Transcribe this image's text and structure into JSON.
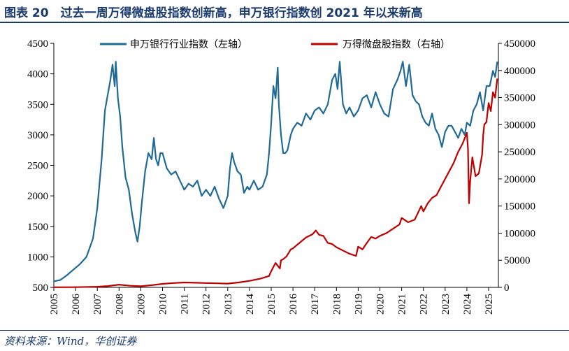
{
  "figure": {
    "title": "图表 20　过去一周万得微盘股指数创新高，申万银行指数创 2021 年以来新高",
    "source": "资料来源：Wind，华创证券"
  },
  "colors": {
    "bank": "#1f6a96",
    "microcap": "#c00000",
    "title": "#1b3b6f"
  },
  "chart_data": {
    "type": "line",
    "title": "图表 20　过去一周万得微盘股指数创新高，申万银行指数创 2021 年以来新高",
    "xlabel": "",
    "ylabel": "",
    "x_ticks": [
      "2005",
      "2006",
      "2007",
      "2008",
      "2009",
      "2010",
      "2011",
      "2012",
      "2013",
      "2014",
      "2015",
      "2016",
      "2017",
      "2018",
      "2019",
      "2020",
      "2021",
      "2022",
      "2023",
      "2024",
      "2025"
    ],
    "xlim": [
      2005,
      2025.45
    ],
    "ylim_left": [
      500,
      4500
    ],
    "ylim_right": [
      0,
      450000
    ],
    "y_ticks_left": [
      "4500",
      "4000",
      "3500",
      "3000",
      "2500",
      "2000",
      "1500",
      "1000",
      "500"
    ],
    "y_ticks_right": [
      "450000",
      "400000",
      "350000",
      "300000",
      "250000",
      "200000",
      "150000",
      "100000",
      "50000",
      "0"
    ],
    "grid": false,
    "legend_position": "top-center",
    "series": [
      {
        "name": "申万银行行业指数（左轴）",
        "axis": "left",
        "x": [
          2005.0,
          2005.3,
          2005.6,
          2005.9,
          2006.2,
          2006.5,
          2006.8,
          2007.0,
          2007.2,
          2007.35,
          2007.5,
          2007.6,
          2007.7,
          2007.8,
          2007.85,
          2007.95,
          2008.05,
          2008.15,
          2008.3,
          2008.45,
          2008.6,
          2008.75,
          2008.85,
          2008.95,
          2009.05,
          2009.2,
          2009.35,
          2009.5,
          2009.6,
          2009.7,
          2009.8,
          2009.9,
          2010.0,
          2010.2,
          2010.4,
          2010.6,
          2010.8,
          2011.0,
          2011.2,
          2011.4,
          2011.6,
          2011.8,
          2012.0,
          2012.2,
          2012.4,
          2012.6,
          2012.8,
          2012.9,
          2013.0,
          2013.1,
          2013.2,
          2013.3,
          2013.45,
          2013.6,
          2013.75,
          2013.9,
          2014.0,
          2014.2,
          2014.4,
          2014.6,
          2014.8,
          2014.9,
          2015.0,
          2015.1,
          2015.2,
          2015.3,
          2015.35,
          2015.45,
          2015.55,
          2015.65,
          2015.75,
          2015.9,
          2016.0,
          2016.2,
          2016.4,
          2016.6,
          2016.8,
          2017.0,
          2017.2,
          2017.4,
          2017.6,
          2017.8,
          2017.95,
          2018.05,
          2018.15,
          2018.3,
          2018.45,
          2018.6,
          2018.8,
          2019.0,
          2019.2,
          2019.4,
          2019.6,
          2019.8,
          2020.0,
          2020.2,
          2020.4,
          2020.6,
          2020.8,
          2020.95,
          2021.05,
          2021.2,
          2021.35,
          2021.5,
          2021.65,
          2021.8,
          2021.95,
          2022.1,
          2022.25,
          2022.4,
          2022.55,
          2022.7,
          2022.85,
          2023.0,
          2023.15,
          2023.3,
          2023.45,
          2023.6,
          2023.75,
          2023.9,
          2024.0,
          2024.15,
          2024.3,
          2024.45,
          2024.6,
          2024.75,
          2024.9,
          2025.05,
          2025.2,
          2025.3,
          2025.4
        ],
        "values": [
          600,
          620,
          700,
          790,
          880,
          1000,
          1300,
          1800,
          2600,
          3400,
          3700,
          3900,
          4150,
          3800,
          4200,
          3600,
          3300,
          2800,
          2300,
          2100,
          1700,
          1400,
          1250,
          1500,
          1900,
          2400,
          2700,
          2600,
          2950,
          2600,
          2500,
          2700,
          2700,
          2450,
          2350,
          2400,
          2250,
          2100,
          2200,
          2150,
          2250,
          2000,
          2100,
          2000,
          2150,
          1950,
          1800,
          1900,
          2000,
          2450,
          2700,
          2550,
          2400,
          2350,
          2050,
          2150,
          2100,
          2250,
          2100,
          2150,
          2350,
          2700,
          3200,
          3800,
          3600,
          4100,
          3500,
          3000,
          2700,
          2700,
          2750,
          3000,
          3100,
          3200,
          3150,
          3350,
          3250,
          3400,
          3450,
          3350,
          3500,
          3900,
          4000,
          3750,
          4200,
          3500,
          3350,
          3450,
          3300,
          3400,
          3600,
          3650,
          3450,
          3700,
          3500,
          3350,
          3300,
          3750,
          3900,
          4050,
          4200,
          3800,
          4150,
          3650,
          3550,
          3500,
          3300,
          3200,
          3150,
          3350,
          3100,
          3000,
          2800,
          3050,
          3150,
          3150,
          3050,
          2950,
          3100,
          3000,
          3200,
          3150,
          3400,
          3500,
          3700,
          3400,
          3800,
          3800,
          4050,
          3950,
          4200
        ],
        "color": "#1f6a96"
      },
      {
        "name": "万得微盘股指数（右轴）",
        "axis": "right",
        "x": [
          2005.0,
          2006.0,
          2007.0,
          2007.5,
          2008.0,
          2008.5,
          2009.0,
          2009.5,
          2010.0,
          2010.5,
          2011.0,
          2011.5,
          2012.0,
          2012.5,
          2013.0,
          2013.5,
          2014.0,
          2014.5,
          2014.9,
          2015.0,
          2015.2,
          2015.4,
          2015.45,
          2015.55,
          2015.7,
          2015.9,
          2016.0,
          2016.3,
          2016.6,
          2016.9,
          2017.05,
          2017.2,
          2017.4,
          2017.6,
          2017.8,
          2018.0,
          2018.3,
          2018.6,
          2018.9,
          2019.0,
          2019.2,
          2019.4,
          2019.6,
          2019.8,
          2020.0,
          2020.3,
          2020.6,
          2020.9,
          2021.0,
          2021.3,
          2021.6,
          2021.9,
          2022.0,
          2022.2,
          2022.4,
          2022.6,
          2022.8,
          2023.0,
          2023.2,
          2023.4,
          2023.6,
          2023.8,
          2024.0,
          2024.05,
          2024.1,
          2024.15,
          2024.25,
          2024.4,
          2024.55,
          2024.7,
          2024.75,
          2024.8,
          2024.9,
          2025.0,
          2025.1,
          2025.2,
          2025.3,
          2025.4
        ],
        "values": [
          200,
          400,
          1200,
          2500,
          5000,
          3000,
          2000,
          4000,
          6500,
          8000,
          9000,
          8500,
          8000,
          7500,
          7000,
          9000,
          12000,
          16000,
          21000,
          30000,
          45000,
          35000,
          50000,
          52000,
          57000,
          70000,
          72000,
          82000,
          92000,
          98000,
          105000,
          97000,
          95000,
          82000,
          80000,
          74000,
          68000,
          62000,
          58000,
          75000,
          70000,
          82000,
          93000,
          90000,
          95000,
          100000,
          108000,
          116000,
          128000,
          120000,
          125000,
          150000,
          140000,
          155000,
          165000,
          170000,
          185000,
          200000,
          215000,
          230000,
          250000,
          265000,
          285000,
          255000,
          155000,
          195000,
          240000,
          205000,
          210000,
          245000,
          280000,
          300000,
          305000,
          340000,
          325000,
          360000,
          350000,
          385000
        ],
        "color": "#c00000"
      }
    ]
  }
}
